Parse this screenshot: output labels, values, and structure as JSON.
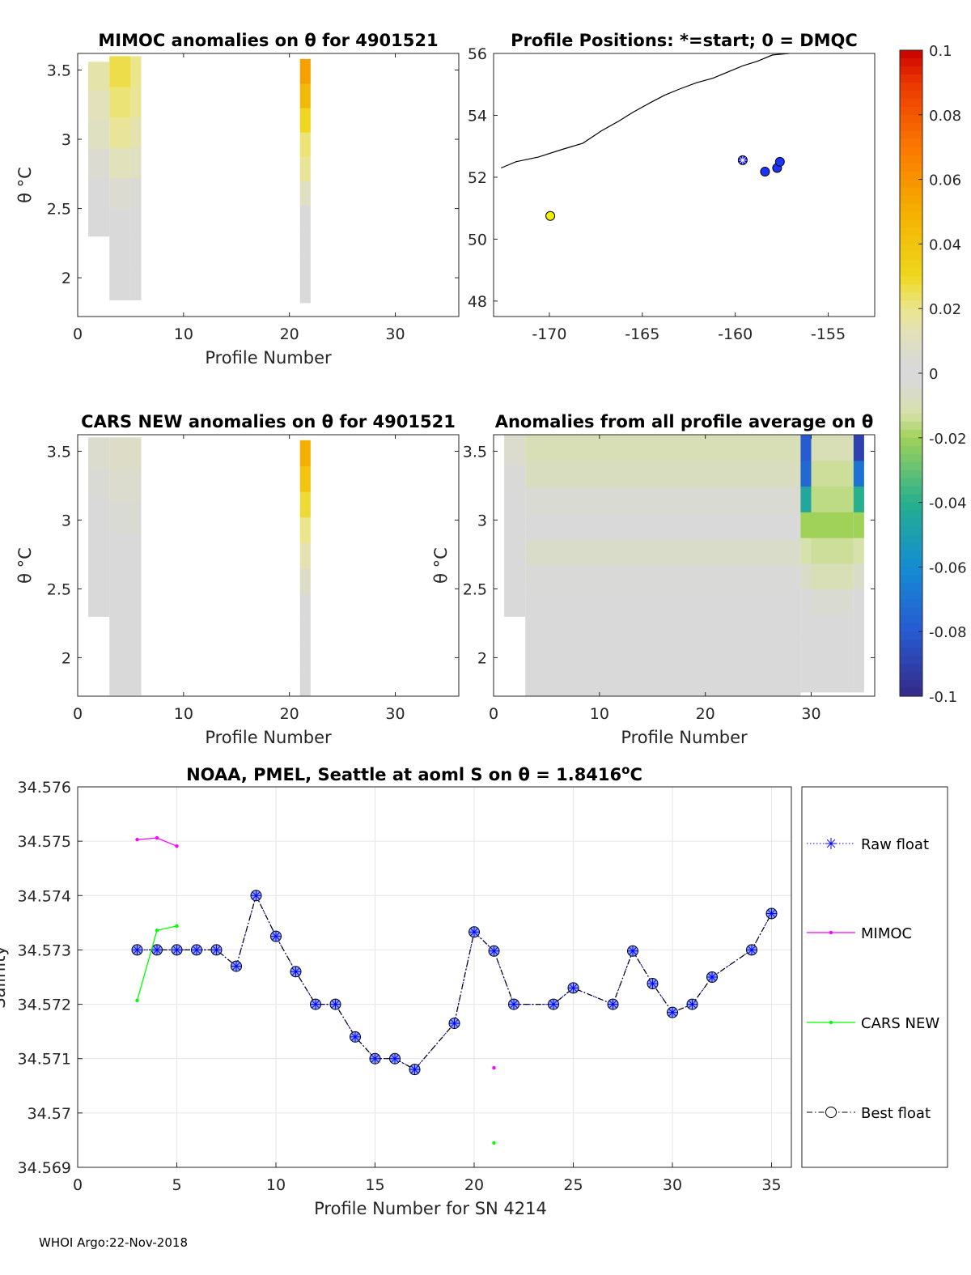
{
  "footer": "WHOI Argo:22-Nov-2018",
  "colors": {
    "raw": "#0000ff",
    "mimoc": "#ff00ff",
    "cars": "#00ff00",
    "best": "#000000",
    "marker_fill": "#8ea2ff",
    "neutral": "#d9d9d9",
    "grid": "#e6e6e6"
  },
  "colorbar": {
    "min": -0.1,
    "max": 0.1,
    "ticks": [
      "0.1",
      "0.08",
      "0.06",
      "0.04",
      "0.02",
      "0",
      "-0.02",
      "-0.04",
      "-0.06",
      "-0.08",
      "-0.1"
    ]
  },
  "chart_data": [
    {
      "id": "mimoc_anom",
      "type": "heatmap",
      "title": "MIMOC anomalies on θ  for 4901521",
      "xlabel": "Profile Number",
      "ylabel": "θ °C",
      "xlim": [
        0,
        36
      ],
      "ylim": [
        1.72,
        3.62
      ],
      "xticks": [
        0,
        10,
        20,
        30
      ],
      "yticks": [
        2,
        2.5,
        3,
        3.5
      ],
      "columns": [
        {
          "x0": 1,
          "x1": 3,
          "theta_min": 2.3,
          "theta_max": 3.56,
          "values": [
            0,
            0,
            0.005,
            0.01,
            0.012,
            0.015
          ]
        },
        {
          "x0": 3,
          "x1": 5,
          "theta_min": 1.84,
          "theta_max": 3.6,
          "values": [
            0,
            0,
            0,
            0.005,
            0.012,
            0.018,
            0.022,
            0.026
          ]
        },
        {
          "x0": 5,
          "x1": 6,
          "theta_min": 1.84,
          "theta_max": 3.6,
          "values": [
            0,
            0,
            0,
            0.004,
            0.01,
            0.014,
            0.018,
            0.02
          ]
        },
        {
          "x0": 21,
          "x1": 22,
          "theta_min": 1.82,
          "theta_max": 3.58,
          "values": [
            0,
            0,
            0,
            0,
            0.01,
            0.018,
            0.022,
            0.03,
            0.045,
            0.055
          ]
        }
      ]
    },
    {
      "id": "positions",
      "type": "scatter",
      "title": "Profile Positions: *=start; 0 = DMQC",
      "xlim": [
        -173,
        -152.5
      ],
      "ylim": [
        47.5,
        56
      ],
      "xticks": [
        -170,
        -165,
        -160,
        -155
      ],
      "yticks": [
        48,
        50,
        52,
        54,
        56
      ],
      "points": [
        {
          "lon": -169.95,
          "lat": 50.75,
          "kind": "dmqc",
          "color": "#f0f000"
        },
        {
          "lon": -159.6,
          "lat": 52.55,
          "kind": "start",
          "color": "#0000ff"
        },
        {
          "lon": -158.4,
          "lat": 52.18,
          "kind": "dmqc",
          "color": "#1a33ff"
        },
        {
          "lon": -157.75,
          "lat": 52.3,
          "kind": "dmqc",
          "color": "#1a33ff"
        },
        {
          "lon": -157.6,
          "lat": 52.5,
          "kind": "dmqc",
          "color": "#1a33ff"
        }
      ],
      "coastline": [
        [
          -172.6,
          52.3
        ],
        [
          -171.8,
          52.5
        ],
        [
          -170.6,
          52.65
        ],
        [
          -169.3,
          52.9
        ],
        [
          -168.2,
          53.1
        ],
        [
          -167.2,
          53.5
        ],
        [
          -166.3,
          53.8
        ],
        [
          -165.5,
          54.1
        ],
        [
          -164.6,
          54.4
        ],
        [
          -163.8,
          54.65
        ],
        [
          -163.0,
          54.85
        ],
        [
          -162.1,
          55.05
        ],
        [
          -161.2,
          55.2
        ],
        [
          -160.4,
          55.4
        ],
        [
          -159.6,
          55.6
        ],
        [
          -158.8,
          55.75
        ],
        [
          -158.0,
          55.95
        ],
        [
          -157.1,
          56.0
        ]
      ]
    },
    {
      "id": "cars_anom",
      "type": "heatmap",
      "title": "CARS NEW anomalies on θ for 4901521",
      "xlabel": "Profile Number",
      "ylabel": "θ °C",
      "xlim": [
        0,
        36
      ],
      "ylim": [
        1.72,
        3.62
      ],
      "xticks": [
        0,
        10,
        20,
        30
      ],
      "yticks": [
        2,
        2.5,
        3,
        3.5
      ],
      "columns": [
        {
          "x0": 1,
          "x1": 3,
          "theta_min": 2.3,
          "theta_max": 3.6,
          "values": [
            0,
            0,
            0,
            0.002,
            0.004,
            0.006
          ]
        },
        {
          "x0": 3,
          "x1": 6,
          "theta_min": 1.73,
          "theta_max": 3.6,
          "values": [
            0,
            0,
            0,
            0,
            0.002,
            0.004,
            0.006,
            0.008
          ]
        },
        {
          "x0": 21,
          "x1": 22,
          "theta_min": 1.72,
          "theta_max": 3.58,
          "values": [
            0,
            0,
            0,
            0,
            0.008,
            0.014,
            0.02,
            0.028,
            0.04,
            0.05
          ]
        }
      ]
    },
    {
      "id": "all_avg_anom",
      "type": "heatmap",
      "title": "Anomalies from all profile average on θ",
      "xlabel": "Profile Number",
      "ylabel": "θ °C",
      "xlim": [
        0,
        36
      ],
      "ylim": [
        1.72,
        3.62
      ],
      "xticks": [
        0,
        10,
        20,
        30
      ],
      "yticks": [
        2,
        2.5,
        3,
        3.5
      ],
      "columns": [
        {
          "x0": 1,
          "x1": 3,
          "theta_min": 2.3,
          "theta_max": 3.62,
          "values": [
            0,
            0,
            0,
            0,
            0.003,
            0.006
          ]
        },
        {
          "x0": 3,
          "x1": 29,
          "theta_min": 1.72,
          "theta_max": 3.62,
          "values": [
            0,
            0,
            0,
            0,
            -0.003,
            -0.006,
            0,
            -0.004,
            -0.008,
            -0.01
          ]
        },
        {
          "x0": 29,
          "x1": 30,
          "theta_min": 1.75,
          "theta_max": 3.62,
          "values": [
            0,
            0,
            0,
            0,
            -0.006,
            -0.012,
            -0.02,
            -0.045,
            -0.075,
            -0.08
          ]
        },
        {
          "x0": 30,
          "x1": 34,
          "theta_min": 1.75,
          "theta_max": 3.62,
          "values": [
            0,
            0,
            0,
            -0.004,
            -0.01,
            -0.014,
            -0.02,
            -0.016,
            -0.014,
            -0.01
          ]
        },
        {
          "x0": 34,
          "x1": 35,
          "theta_min": 1.75,
          "theta_max": 3.62,
          "values": [
            0,
            0,
            0,
            0,
            -0.006,
            -0.012,
            -0.02,
            -0.04,
            -0.07,
            -0.09
          ]
        }
      ]
    },
    {
      "id": "salinity",
      "type": "line",
      "title": "NOAA, PMEL, Seattle at aoml S on θ = 1.8416",
      "title_sup": "o",
      "title_tail": "C",
      "xlabel": "Profile Number for SN 4214",
      "ylabel": "Salinity",
      "xlim": [
        0,
        36
      ],
      "ylim": [
        34.569,
        34.576
      ],
      "xticks": [
        0,
        5,
        10,
        15,
        20,
        25,
        30,
        35
      ],
      "yticks": [
        "34.569",
        "34.57",
        "34.571",
        "34.572",
        "34.573",
        "34.574",
        "34.575",
        "34.576"
      ],
      "series": [
        {
          "name": "Raw float",
          "style": "raw",
          "x": [
            3,
            4,
            5,
            6,
            7,
            8,
            9,
            10,
            11,
            12,
            13,
            14,
            15,
            16,
            17,
            19,
            20,
            21,
            22,
            24,
            25,
            27,
            28,
            29,
            30,
            31,
            32,
            34,
            35
          ],
          "y": [
            34.573,
            34.573,
            34.573,
            34.573,
            34.573,
            34.5727,
            34.574,
            34.57325,
            34.5726,
            34.572,
            34.572,
            34.5714,
            34.571,
            34.571,
            34.5708,
            34.57165,
            34.57333,
            34.57298,
            34.572,
            34.572,
            34.5723,
            34.572,
            34.57298,
            34.57238,
            34.57185,
            34.572,
            34.5725,
            34.573,
            34.57367
          ]
        },
        {
          "name": "MIMOC",
          "style": "mimoc",
          "x": [
            3,
            4,
            5,
            21
          ],
          "y": [
            34.57503,
            34.57506,
            34.57491,
            34.57083
          ],
          "connect": [
            [
              0,
              2
            ]
          ]
        },
        {
          "name": "CARS NEW",
          "style": "cars",
          "x": [
            3,
            4,
            5,
            21
          ],
          "y": [
            34.57207,
            34.57336,
            34.57344,
            34.56945
          ],
          "connect": [
            [
              0,
              2
            ]
          ]
        },
        {
          "name": "Best float",
          "style": "best",
          "x": [
            3,
            4,
            5,
            6,
            7,
            8,
            9,
            10,
            11,
            12,
            13,
            14,
            15,
            16,
            17,
            19,
            20,
            21,
            22,
            24,
            25,
            27,
            28,
            29,
            30,
            31,
            32,
            34,
            35
          ],
          "y": [
            34.573,
            34.573,
            34.573,
            34.573,
            34.573,
            34.5727,
            34.574,
            34.57325,
            34.5726,
            34.572,
            34.572,
            34.5714,
            34.571,
            34.571,
            34.5708,
            34.57165,
            34.57333,
            34.57298,
            34.572,
            34.572,
            34.5723,
            34.572,
            34.57298,
            34.57238,
            34.57185,
            34.572,
            34.5725,
            34.573,
            34.57367
          ]
        }
      ]
    }
  ]
}
